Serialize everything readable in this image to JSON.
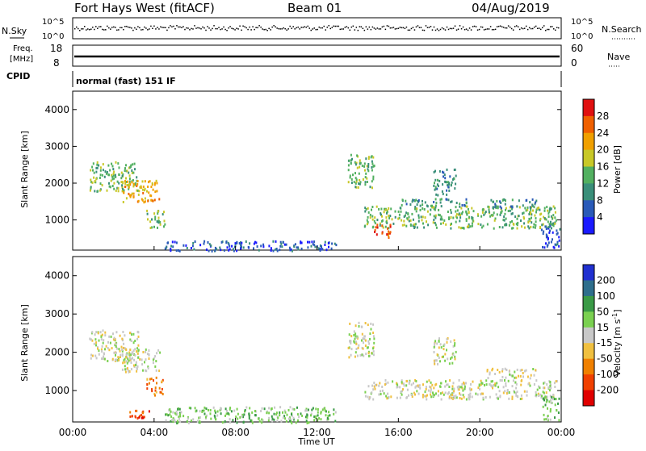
{
  "header": {
    "station": "Fort Hays West (fitACF)",
    "beam": "Beam 01",
    "date": "04/Aug/2019"
  },
  "top_panels": {
    "nsky_label": "N.Sky",
    "nsearch_label": "N.Search",
    "nsky_ticks": [
      "10^5",
      "10^0"
    ],
    "nsearch_ticks": [
      "10^5",
      "10^0"
    ],
    "freq_label_1": "Freq.",
    "freq_label_2": "[MHz]",
    "freq_ticks": [
      "18",
      "8"
    ],
    "nave_label": "Nave",
    "nave_ticks": [
      "60",
      "0"
    ],
    "cpid_label": "CPID",
    "mode_text": "normal (fast) 151 IF"
  },
  "chart_data": [
    {
      "type": "heatmap",
      "quantity": "Power",
      "ylabel": "Slant Range [km]",
      "ylim": [
        180,
        4500
      ],
      "yticks": [
        "1000",
        "2000",
        "3000",
        "4000"
      ],
      "colorbar_label": "Power [dB]",
      "colorbar_ticks": [
        "4",
        "8",
        "12",
        "16",
        "20",
        "24",
        "28"
      ],
      "colors": [
        "#1a1aff",
        "#2a5ab8",
        "#3a8f7a",
        "#52b060",
        "#c8c828",
        "#f0a000",
        "#f06000",
        "#e01010"
      ],
      "xlabel": "",
      "regions": [
        {
          "t0": 0.8,
          "t1": 3.2,
          "r0": 1800,
          "r1": 2600,
          "level": 3
        },
        {
          "t0": 2.4,
          "t1": 4.3,
          "r0": 1500,
          "r1": 2100,
          "level": 5
        },
        {
          "t0": 3.6,
          "t1": 4.5,
          "r0": 800,
          "r1": 1300,
          "level": 3
        },
        {
          "t0": 4.5,
          "t1": 13.0,
          "r0": 180,
          "r1": 450,
          "level": 1
        },
        {
          "t0": 13.5,
          "t1": 14.8,
          "r0": 1900,
          "r1": 2800,
          "level": 3
        },
        {
          "t0": 14.3,
          "t1": 23.8,
          "r0": 800,
          "r1": 1400,
          "level": 3
        },
        {
          "t0": 14.7,
          "t1": 15.6,
          "r0": 550,
          "r1": 900,
          "level": 6
        },
        {
          "t0": 17.7,
          "t1": 18.8,
          "r0": 1700,
          "r1": 2400,
          "level": 2
        },
        {
          "t0": 16.0,
          "t1": 19.5,
          "r0": 1400,
          "r1": 1600,
          "level": 2
        },
        {
          "t0": 20.3,
          "t1": 22.8,
          "r0": 1350,
          "r1": 1600,
          "level": 2
        },
        {
          "t0": 23.0,
          "t1": 23.9,
          "r0": 250,
          "r1": 900,
          "level": 1
        }
      ]
    },
    {
      "type": "heatmap",
      "quantity": "Velocity",
      "ylabel": "Slant Range [km]",
      "ylim": [
        180,
        4500
      ],
      "yticks": [
        "1000",
        "2000",
        "3000",
        "4000"
      ],
      "colorbar_label": "Velocity [m s",
      "colorbar_label_sup": "-1",
      "colorbar_label_end": "]",
      "colorbar_ticks": [
        "200",
        "100",
        "50",
        "15",
        "-15",
        "-50",
        "-100",
        "-200"
      ],
      "colors": [
        "#2030d0",
        "#2e6e8c",
        "#3a9a46",
        "#7ad050",
        "#c8c8c8",
        "#f0c040",
        "#f08000",
        "#f04000",
        "#e00000"
      ],
      "xlabel": "Time UT",
      "xticks": [
        "00:00",
        "04:00",
        "08:00",
        "12:00",
        "16:00",
        "20:00",
        "00:00"
      ],
      "regions": [
        {
          "t0": 0.8,
          "t1": 3.2,
          "r0": 1800,
          "r1": 2600,
          "level": 4
        },
        {
          "t0": 2.4,
          "t1": 4.3,
          "r0": 1500,
          "r1": 2100,
          "level": 4
        },
        {
          "t0": 3.6,
          "t1": 4.4,
          "r0": 900,
          "r1": 1400,
          "level": 6
        },
        {
          "t0": 2.7,
          "t1": 3.8,
          "r0": 300,
          "r1": 500,
          "level": 7
        },
        {
          "t0": 4.5,
          "t1": 13.0,
          "r0": 180,
          "r1": 600,
          "level": 3
        },
        {
          "t0": 13.5,
          "t1": 14.8,
          "r0": 1900,
          "r1": 2800,
          "level": 4
        },
        {
          "t0": 14.3,
          "t1": 23.8,
          "r0": 800,
          "r1": 1300,
          "level": 4
        },
        {
          "t0": 17.7,
          "t1": 18.8,
          "r0": 1700,
          "r1": 2400,
          "level": 4
        },
        {
          "t0": 20.3,
          "t1": 22.8,
          "r0": 1350,
          "r1": 1600,
          "level": 4
        },
        {
          "t0": 23.0,
          "t1": 23.9,
          "r0": 250,
          "r1": 900,
          "level": 3
        }
      ]
    }
  ]
}
